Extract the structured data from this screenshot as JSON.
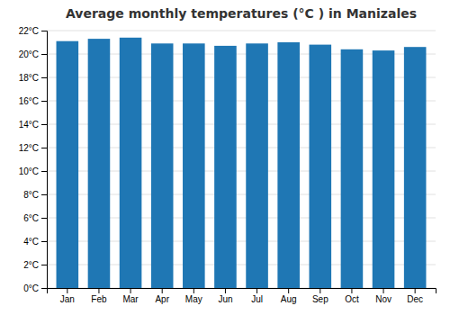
{
  "chart_data": {
    "type": "bar",
    "title": "Average monthly temperatures (°C ) in Manizales",
    "categories": [
      "Jan",
      "Feb",
      "Mar",
      "Apr",
      "May",
      "Jun",
      "Jul",
      "Aug",
      "Sep",
      "Oct",
      "Nov",
      "Dec"
    ],
    "values": [
      21.1,
      21.3,
      21.4,
      20.9,
      20.9,
      20.7,
      20.9,
      21.0,
      20.8,
      20.4,
      20.3,
      20.6
    ],
    "ylim": [
      0,
      22
    ],
    "yticks": [
      {
        "value": 0,
        "label": "0°C"
      },
      {
        "value": 2,
        "label": "2°C"
      },
      {
        "value": 4,
        "label": "4°C"
      },
      {
        "value": 6,
        "label": "6°C"
      },
      {
        "value": 8,
        "label": "8°C"
      },
      {
        "value": 10,
        "label": "10°C"
      },
      {
        "value": 12,
        "label": "12°C"
      },
      {
        "value": 14,
        "label": "14°C"
      },
      {
        "value": 16,
        "label": "16°C"
      },
      {
        "value": 18,
        "label": "18°C"
      },
      {
        "value": 20,
        "label": "20°C"
      },
      {
        "value": 22,
        "label": "22°C"
      }
    ],
    "grid": true
  }
}
